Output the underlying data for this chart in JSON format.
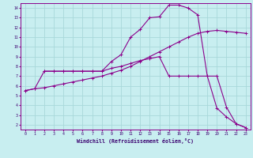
{
  "xlabel": "Windchill (Refroidissement éolien,°C)",
  "bg_color": "#c8eef0",
  "grid_color": "#a8d8da",
  "line_color": "#8b008b",
  "xlim": [
    -0.5,
    23.5
  ],
  "ylim": [
    1.5,
    14.5
  ],
  "xticks": [
    0,
    1,
    2,
    3,
    4,
    5,
    6,
    7,
    8,
    9,
    10,
    11,
    12,
    13,
    14,
    15,
    16,
    17,
    18,
    19,
    20,
    21,
    22,
    23
  ],
  "yticks": [
    2,
    3,
    4,
    5,
    6,
    7,
    8,
    9,
    10,
    11,
    12,
    13,
    14
  ],
  "line1_x": [
    0,
    1,
    2,
    3,
    4,
    5,
    6,
    7,
    8,
    9,
    10,
    11,
    12,
    13,
    14,
    15,
    16,
    17,
    18,
    19,
    20,
    21,
    22,
    23
  ],
  "line1_y": [
    5.5,
    5.7,
    5.8,
    6.0,
    6.2,
    6.4,
    6.6,
    6.8,
    7.0,
    7.3,
    7.6,
    8.0,
    8.5,
    9.0,
    9.5,
    10.0,
    10.5,
    11.0,
    11.4,
    11.6,
    11.7,
    11.6,
    11.5,
    11.4
  ],
  "line2_x": [
    2,
    3,
    4,
    5,
    6,
    7,
    8,
    9,
    10,
    11,
    12,
    13,
    14,
    15,
    16,
    17,
    18,
    19,
    20,
    21,
    22,
    23
  ],
  "line2_y": [
    7.5,
    7.5,
    7.5,
    7.5,
    7.5,
    7.5,
    7.5,
    8.5,
    9.2,
    11.0,
    11.8,
    13.0,
    13.1,
    14.3,
    14.3,
    14.0,
    13.3,
    7.0,
    3.7,
    2.8,
    2.1,
    1.7
  ],
  "line3_x": [
    0,
    1,
    2,
    3,
    4,
    5,
    6,
    7,
    8,
    9,
    10,
    11,
    12,
    13,
    14,
    15,
    16,
    17,
    18,
    19,
    20,
    21,
    22,
    23
  ],
  "line3_y": [
    5.5,
    5.7,
    7.5,
    7.5,
    7.5,
    7.5,
    7.5,
    7.5,
    7.5,
    7.8,
    8.0,
    8.3,
    8.6,
    8.8,
    9.0,
    7.0,
    7.0,
    7.0,
    7.0,
    7.0,
    7.0,
    3.8,
    2.1,
    1.7
  ]
}
